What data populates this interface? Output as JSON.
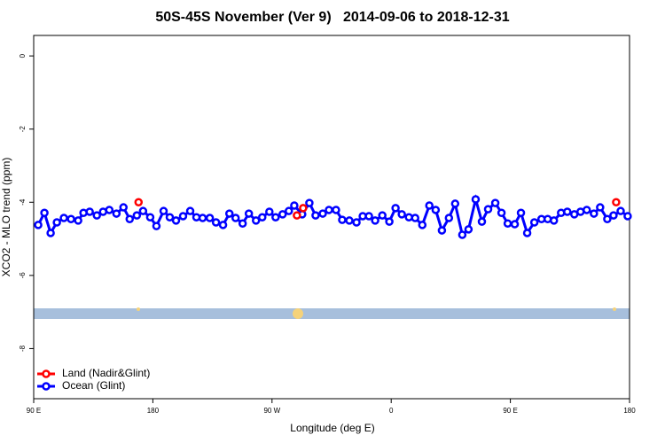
{
  "chart_data": {
    "type": "line",
    "title": "50S-45S November (Ver 9)   2014-09-06 to 2018-12-31",
    "xlabel": "Longitude (deg E)",
    "ylabel": "XCO2 - MLO trend (ppm)",
    "xlim": [
      90,
      540
    ],
    "ylim": [
      -9.37,
      0.56
    ],
    "xticks": [
      {
        "value": 90,
        "label": "90 E"
      },
      {
        "value": 180,
        "label": "180"
      },
      {
        "value": 270,
        "label": "90 W"
      },
      {
        "value": 360,
        "label": "0"
      },
      {
        "value": 450,
        "label": "90 E"
      },
      {
        "value": 540,
        "label": "180"
      }
    ],
    "yticks": [
      0,
      -2,
      -4,
      -6,
      -8
    ],
    "legend": "bottom-left",
    "series": [
      {
        "name": "Land (Nadir&Glint)",
        "color": "#ff0000",
        "lines": false,
        "x": [
          169.2,
          288.8,
          293.5,
          529.9
        ],
        "values": [
          -4.0,
          -4.36,
          -4.16,
          -4.0
        ]
      },
      {
        "name": "Ocean (Glint)",
        "color": "#0000ff",
        "lines": true,
        "x": [
          93.4,
          98.1,
          102.8,
          107.5,
          112.8,
          118.2,
          123.6,
          127.6,
          132.3,
          137.7,
          142.4,
          147.1,
          152.5,
          157.8,
          162.5,
          167.9,
          172.6,
          178.0,
          182.7,
          188.1,
          192.8,
          197.5,
          202.8,
          208.2,
          212.9,
          217.6,
          223.0,
          227.7,
          233.0,
          237.8,
          242.5,
          247.8,
          252.5,
          257.9,
          262.6,
          268.0,
          272.7,
          278.0,
          282.7,
          286.8,
          292.8,
          298.2,
          302.9,
          308.3,
          313.0,
          318.3,
          323.0,
          328.4,
          333.8,
          338.5,
          343.2,
          347.9,
          353.3,
          358.6,
          363.3,
          368.0,
          373.4,
          378.1,
          383.5,
          388.8,
          393.6,
          398.3,
          403.6,
          408.3,
          413.7,
          418.4,
          423.8,
          428.5,
          433.2,
          438.6,
          443.3,
          448.0,
          453.3,
          458.0,
          462.7,
          468.1,
          473.5,
          478.2,
          482.9,
          488.3,
          493.0,
          498.3,
          503.0,
          507.7,
          513.1,
          517.8,
          523.2,
          527.9,
          533.3,
          538.6
        ],
        "values": [
          -4.62,
          -4.29,
          -4.84,
          -4.55,
          -4.43,
          -4.46,
          -4.5,
          -4.29,
          -4.26,
          -4.36,
          -4.26,
          -4.21,
          -4.31,
          -4.14,
          -4.46,
          -4.36,
          -4.24,
          -4.41,
          -4.65,
          -4.24,
          -4.41,
          -4.5,
          -4.38,
          -4.24,
          -4.41,
          -4.43,
          -4.43,
          -4.55,
          -4.62,
          -4.31,
          -4.43,
          -4.58,
          -4.31,
          -4.5,
          -4.41,
          -4.26,
          -4.41,
          -4.33,
          -4.24,
          -4.09,
          -4.33,
          -4.02,
          -4.36,
          -4.31,
          -4.21,
          -4.21,
          -4.48,
          -4.5,
          -4.55,
          -4.38,
          -4.38,
          -4.5,
          -4.36,
          -4.53,
          -4.16,
          -4.33,
          -4.41,
          -4.43,
          -4.62,
          -4.09,
          -4.21,
          -4.77,
          -4.43,
          -4.04,
          -4.89,
          -4.74,
          -3.92,
          -4.53,
          -4.19,
          -4.02,
          -4.29,
          -4.58,
          -4.6,
          -4.29,
          -4.84,
          -4.55,
          -4.46,
          -4.46,
          -4.5,
          -4.29,
          -4.26,
          -4.33,
          -4.26,
          -4.21,
          -4.31,
          -4.14,
          -4.46,
          -4.36,
          -4.24,
          -4.38
        ]
      }
    ]
  }
}
